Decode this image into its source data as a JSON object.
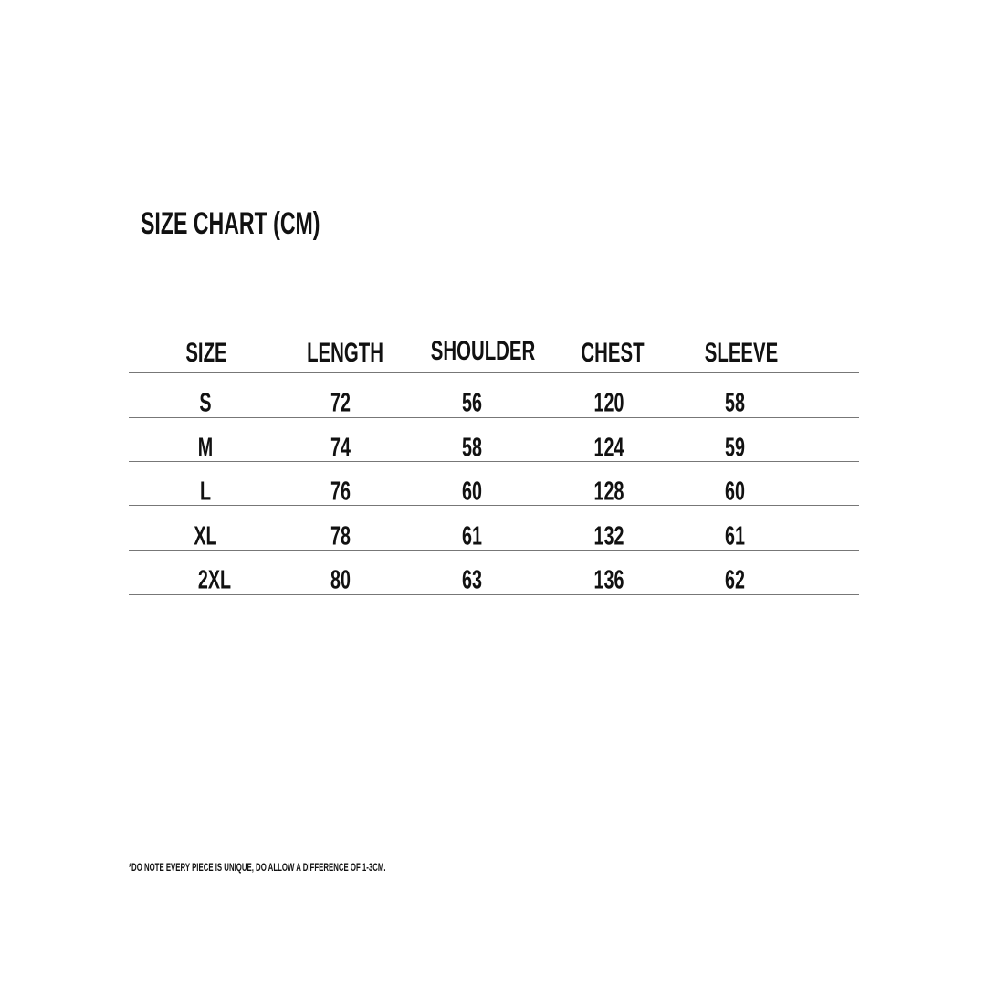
{
  "title": "SIZE CHART (CM)",
  "table": {
    "headers": [
      "SIZE",
      "LENGTH",
      "SHOULDER",
      "CHEST",
      "SLEEVE"
    ],
    "rows": [
      [
        "S",
        "72",
        "56",
        "120",
        "58"
      ],
      [
        "M",
        "74",
        "58",
        "124",
        "59"
      ],
      [
        "L",
        "76",
        "60",
        "128",
        "60"
      ],
      [
        "XL",
        "78",
        "61",
        "132",
        "61"
      ],
      [
        "2XL",
        "80",
        "63",
        "136",
        "62"
      ]
    ]
  },
  "note": "*DO NOTE EVERY PIECE IS UNIQUE, DO ALLOW A DIFFERENCE OF 1-3CM."
}
